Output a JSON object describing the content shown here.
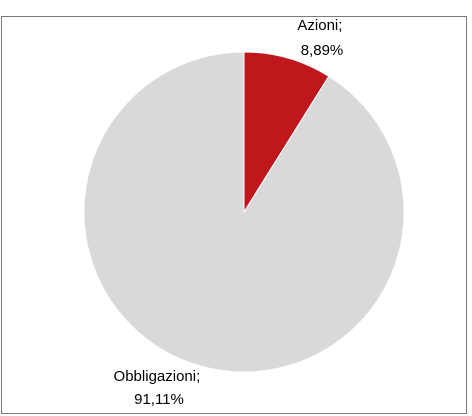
{
  "chart_data": {
    "type": "pie",
    "title": "",
    "slices": [
      {
        "label": "Azioni",
        "value": 8.89,
        "display": "8,89%",
        "color": "#c0171c"
      },
      {
        "label": "Obbligazioni",
        "value": 91.11,
        "display": "91,11%",
        "color": "#d9d9d9"
      }
    ],
    "label_separator": ";",
    "start": "12 o'clock",
    "direction": "clockwise",
    "legend": "none"
  }
}
